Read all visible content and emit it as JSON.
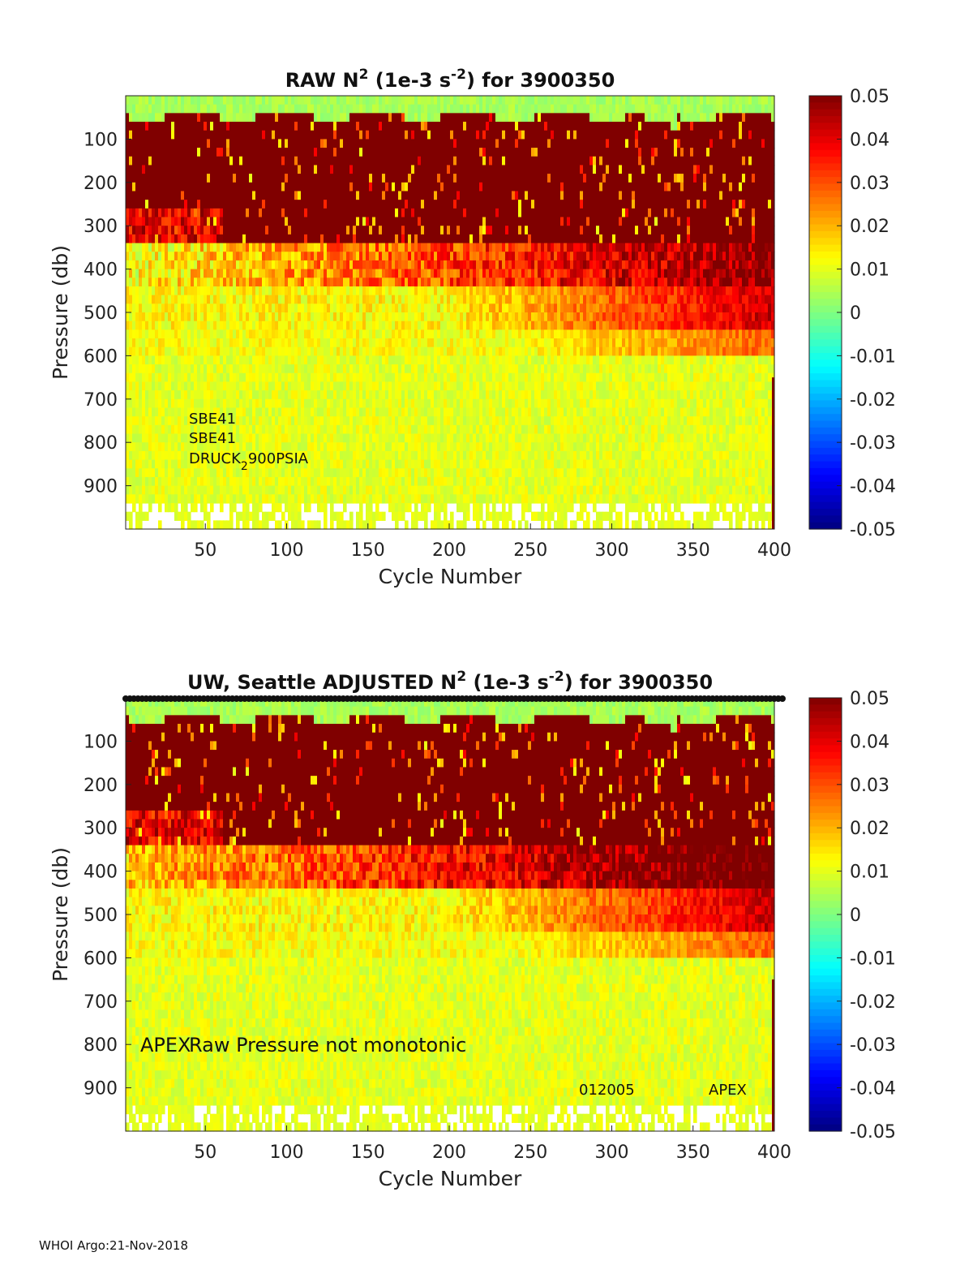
{
  "chart_data": [
    {
      "type": "heatmap",
      "title": "RAW N",
      "title_sup": "2",
      "title_mid": " (1e-3 s",
      "title_sup2": "-2",
      "title_end": ") for 3900350",
      "xlabel": "Cycle Number",
      "ylabel": "Pressure (db)",
      "xlim": [
        1,
        400
      ],
      "ylim": [
        1000,
        0
      ],
      "xticks": [
        50,
        100,
        150,
        200,
        250,
        300,
        350,
        400
      ],
      "yticks": [
        100,
        200,
        300,
        400,
        500,
        600,
        700,
        800,
        900
      ],
      "clim": [
        -0.05,
        0.05
      ],
      "colorbar_ticks": [
        "0.05",
        "0.04",
        "0.03",
        "0.02",
        "0.01",
        "0",
        "-0.01",
        "-0.02",
        "-0.03",
        "-0.04",
        "-0.05"
      ],
      "layers_db": [
        {
          "top": 0,
          "bottom": 60,
          "description": "near-zero values (white/yellow)"
        },
        {
          "top": 60,
          "bottom": 350,
          "value": 0.05
        },
        {
          "top": 350,
          "bottom": 450,
          "value": 0.04
        },
        {
          "top": 450,
          "bottom": 600,
          "value": 0.025
        },
        {
          "top": 600,
          "bottom": 1000,
          "value": 0.01
        }
      ],
      "annotations": {
        "sensor1": "SBE41",
        "sensor2": "SBE41",
        "pressure_sensor_a": "DRUCK",
        "pressure_sensor_sub": "2",
        "pressure_sensor_b": "900PSIA"
      }
    },
    {
      "type": "heatmap",
      "title": "UW, Seattle  ADJUSTED N",
      "title_sup": "2",
      "title_mid": " (1e-3 s",
      "title_sup2": "-2",
      "title_end": ") for 3900350",
      "xlabel": "Cycle Number",
      "ylabel": "Pressure (db)",
      "xlim": [
        1,
        400
      ],
      "ylim": [
        1000,
        0
      ],
      "xticks": [
        50,
        100,
        150,
        200,
        250,
        300,
        350,
        400
      ],
      "yticks": [
        100,
        200,
        300,
        400,
        500,
        600,
        700,
        800,
        900
      ],
      "clim": [
        -0.05,
        0.05
      ],
      "colorbar_ticks": [
        "0.05",
        "0.04",
        "0.03",
        "0.02",
        "0.01",
        "0",
        "-0.01",
        "-0.02",
        "-0.03",
        "-0.04",
        "-0.05"
      ],
      "annotations": {
        "platform": "APEX",
        "warning": "Raw Pressure not monotonic",
        "firmware": "012005",
        "platform2": "APEX"
      }
    }
  ],
  "footer": "WHOI Argo:21-Nov-2018"
}
